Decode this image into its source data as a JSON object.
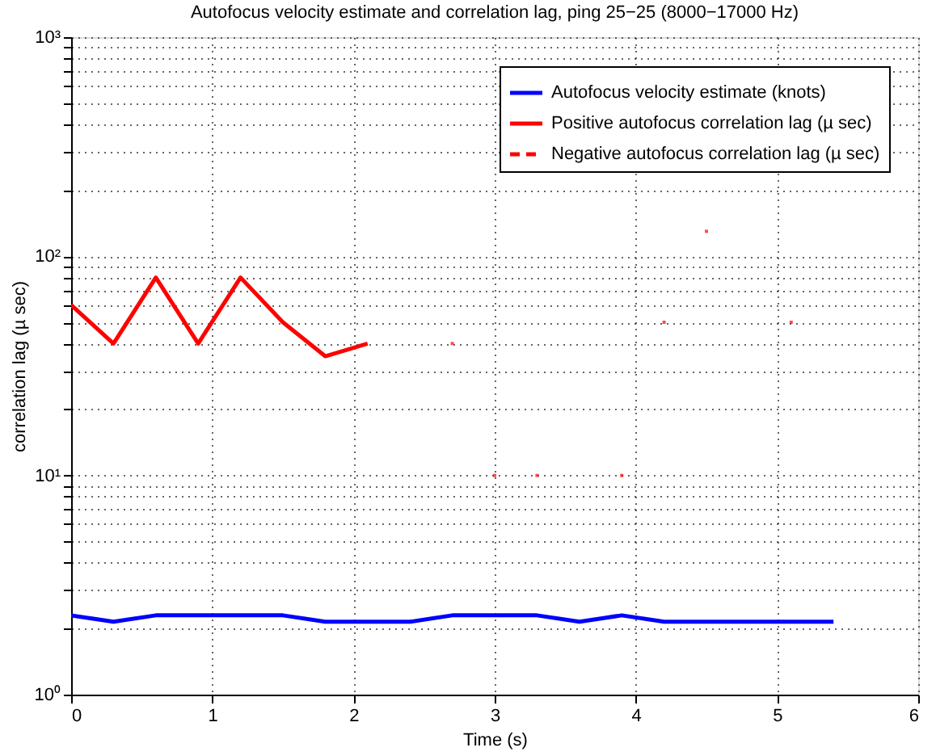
{
  "chart_data": {
    "type": "line",
    "title": "Autofocus velocity estimate and correlation lag, ping 25−25 (8000−17000 Hz)",
    "xlabel": "Time (s)",
    "ylabel": "correlation lag (µ sec)",
    "x": [
      0,
      0.3,
      0.6,
      0.9,
      1.2,
      1.5,
      1.8,
      2.1,
      2.4,
      2.7,
      3.0,
      3.3,
      3.6,
      3.9,
      4.2,
      4.5,
      4.8,
      5.1,
      5.4
    ],
    "series": [
      {
        "name": "Autofocus velocity estimate (knots)",
        "color": "#0000ff",
        "line_style": "solid",
        "values": [
          2.3,
          2.15,
          2.3,
          2.3,
          2.3,
          2.3,
          2.15,
          2.15,
          2.15,
          2.3,
          2.3,
          2.3,
          2.15,
          2.3,
          2.15,
          2.15,
          2.15,
          2.15,
          2.15
        ]
      },
      {
        "name": "Positive autofocus correlation lag (µ sec)",
        "color": "#ff0000",
        "line_style": "solid",
        "x": [
          0,
          0.3,
          0.6,
          0.9,
          1.2,
          1.5,
          1.8,
          2.1,
          2.4,
          2.7,
          2.85,
          3.0,
          3.15,
          3.3,
          3.45,
          3.9,
          4.05,
          4.2,
          4.35,
          4.5,
          4.65,
          5.1
        ],
        "values": [
          60,
          40,
          80,
          40,
          80,
          50,
          35,
          40,
          null,
          40,
          null,
          10,
          null,
          10,
          null,
          10,
          null,
          50,
          null,
          130,
          null,
          50
        ]
      },
      {
        "name": "Negative autofocus correlation lag (µ sec)",
        "color": "#ff0000",
        "line_style": "dashed",
        "values": [
          null,
          null,
          null,
          null,
          null,
          null,
          null,
          null,
          null,
          null,
          null,
          null,
          null,
          null,
          null,
          null,
          null,
          null,
          null
        ]
      }
    ],
    "log": "y",
    "xlim": [
      0,
      6
    ],
    "xticks": [
      0,
      1,
      2,
      3,
      4,
      5,
      6
    ],
    "ylim": [
      1,
      1000
    ],
    "yticks": [
      {
        "value": 1,
        "label": "10⁰"
      },
      {
        "value": 2,
        "label": null
      },
      {
        "value": 3,
        "label": null
      },
      {
        "value": 4,
        "label": null
      },
      {
        "value": 5,
        "label": null
      },
      {
        "value": 6,
        "label": null
      },
      {
        "value": 7,
        "label": null
      },
      {
        "value": 8,
        "label": null
      },
      {
        "value": 9,
        "label": null
      },
      {
        "value": 10,
        "label": "10¹"
      },
      {
        "value": 20,
        "label": null
      },
      {
        "value": 30,
        "label": null
      },
      {
        "value": 40,
        "label": null
      },
      {
        "value": 50,
        "label": null
      },
      {
        "value": 60,
        "label": null
      },
      {
        "value": 70,
        "label": null
      },
      {
        "value": 80,
        "label": null
      },
      {
        "value": 90,
        "label": null
      },
      {
        "value": 100,
        "label": "10²"
      },
      {
        "value": 200,
        "label": null
      },
      {
        "value": 300,
        "label": null
      },
      {
        "value": 400,
        "label": null
      },
      {
        "value": 500,
        "label": null
      },
      {
        "value": 600,
        "label": null
      },
      {
        "value": 700,
        "label": null
      },
      {
        "value": 800,
        "label": null
      },
      {
        "value": 900,
        "label": null
      },
      {
        "value": 1000,
        "label": "10³"
      }
    ],
    "grid": true,
    "legend": "top right",
    "marker": "none"
  }
}
